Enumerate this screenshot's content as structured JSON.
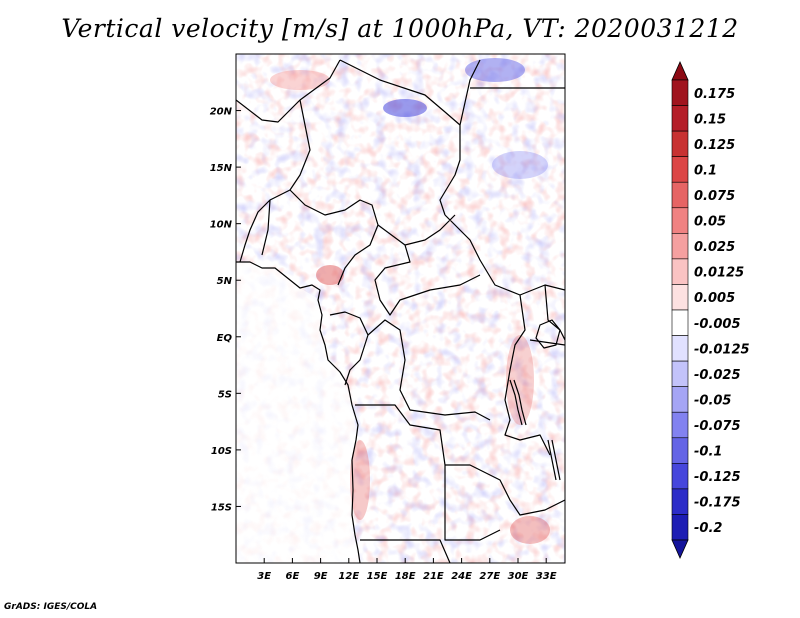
{
  "title": "Vertical velocity [m/s] at 1000hPa, VT: 2020031212",
  "credit": "GrADS: IGES/COLA",
  "chart_data": {
    "type": "heatmap",
    "variable": "Vertical velocity",
    "units": "m/s",
    "level": "1000hPa",
    "valid_time": "2020031212",
    "lon_range": [
      0,
      35
    ],
    "lat_range": [
      -20,
      25
    ],
    "x_ticks": [
      {
        "lon": 3,
        "label": "3E"
      },
      {
        "lon": 6,
        "label": "6E"
      },
      {
        "lon": 9,
        "label": "9E"
      },
      {
        "lon": 12,
        "label": "12E"
      },
      {
        "lon": 15,
        "label": "15E"
      },
      {
        "lon": 18,
        "label": "18E"
      },
      {
        "lon": 21,
        "label": "21E"
      },
      {
        "lon": 24,
        "label": "24E"
      },
      {
        "lon": 27,
        "label": "27E"
      },
      {
        "lon": 30,
        "label": "30E"
      },
      {
        "lon": 33,
        "label": "33E"
      }
    ],
    "y_ticks": [
      {
        "lat": 20,
        "label": "20N"
      },
      {
        "lat": 15,
        "label": "15N"
      },
      {
        "lat": 10,
        "label": "10N"
      },
      {
        "lat": 5,
        "label": "5N"
      },
      {
        "lat": 0,
        "label": "EQ"
      },
      {
        "lat": -5,
        "label": "5S"
      },
      {
        "lat": -10,
        "label": "10S"
      },
      {
        "lat": -15,
        "label": "15S"
      }
    ],
    "colorbar": {
      "orientation": "vertical",
      "placement": "right",
      "levels": [
        {
          "label": "0.175",
          "color": "#a0141e"
        },
        {
          "label": "0.15",
          "color": "#b41e28"
        },
        {
          "label": "0.125",
          "color": "#c83232"
        },
        {
          "label": "0.1",
          "color": "#dc4646"
        },
        {
          "label": "0.075",
          "color": "#e66464"
        },
        {
          "label": "0.05",
          "color": "#f08282"
        },
        {
          "label": "0.025",
          "color": "#f5a0a0"
        },
        {
          "label": "0.0125",
          "color": "#fac3c3"
        },
        {
          "label": "0.005",
          "color": "#fde1e1"
        },
        {
          "label": "-0.005",
          "color": "#ffffff"
        },
        {
          "label": "-0.0125",
          "color": "#e1e1ff"
        },
        {
          "label": "-0.025",
          "color": "#c3c3fa"
        },
        {
          "label": "-0.05",
          "color": "#a5a5f5"
        },
        {
          "label": "-0.075",
          "color": "#8282f0"
        },
        {
          "label": "-0.1",
          "color": "#6464e6"
        },
        {
          "label": "-0.125",
          "color": "#4646dc"
        },
        {
          "label": "-0.175",
          "color": "#2d2dc8"
        },
        {
          "label": "-0.2",
          "color": "#1e1eb4"
        }
      ],
      "top_arrow_color": "#8c0a14",
      "bottom_arrow_color": "#14149b"
    }
  }
}
